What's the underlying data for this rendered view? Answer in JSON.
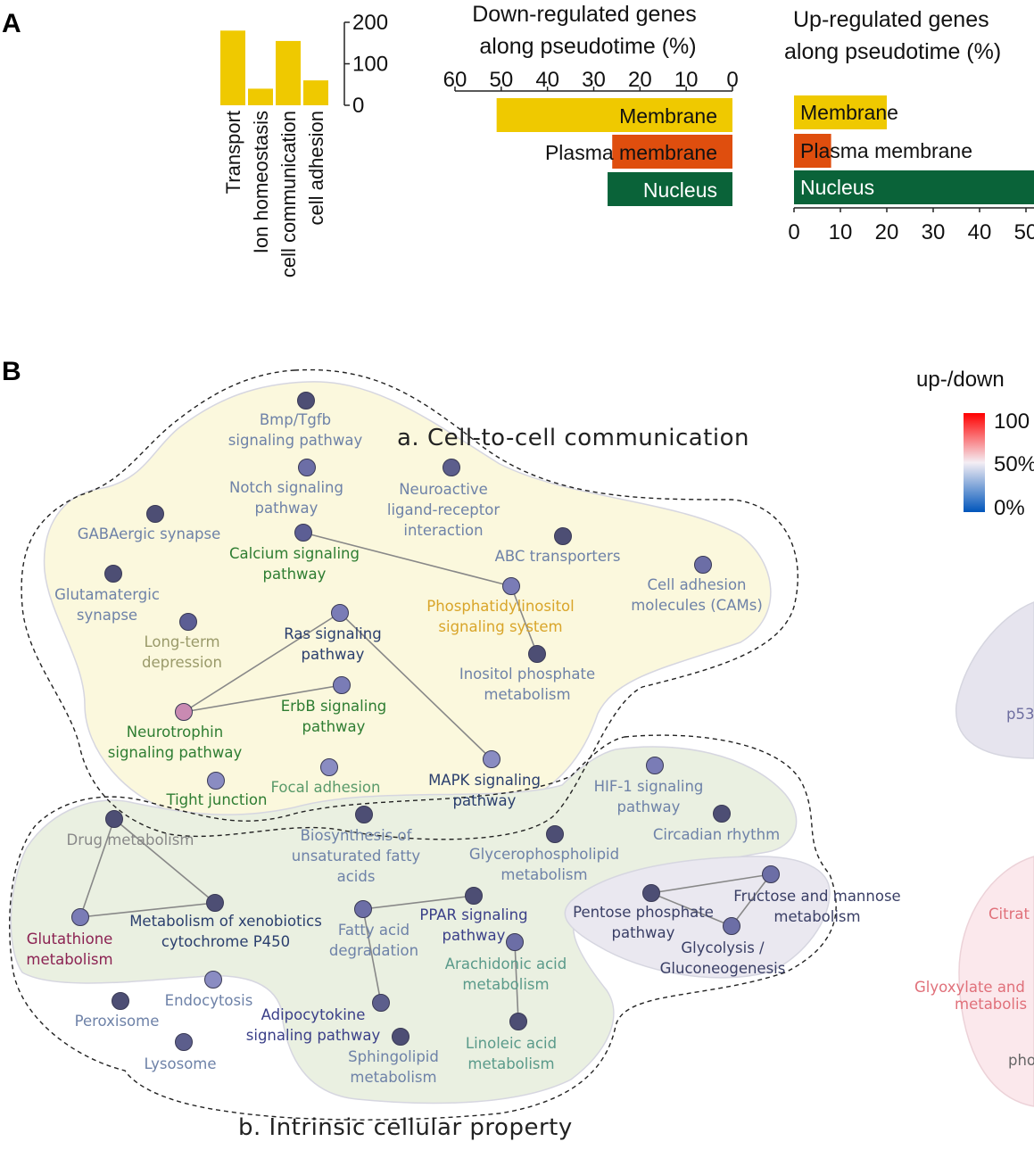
{
  "panels": {
    "a": "A",
    "b": "B"
  },
  "chart_data": [
    {
      "type": "bar",
      "orientation": "vertical",
      "categories": [
        "Transport",
        "Ion homeostasis",
        "cell communication",
        "cell adhesion"
      ],
      "values": [
        180,
        40,
        155,
        60
      ],
      "ylim": [
        0,
        200
      ],
      "yticks": [
        "200",
        "100",
        "0"
      ],
      "color": "#EFC900"
    },
    {
      "type": "bar",
      "orientation": "horizontal",
      "title": "Down-regulated genes along pseudotime (%)",
      "title_lines": [
        "Down-regulated genes",
        "along pseudotime (%)"
      ],
      "categories": [
        "Membrane",
        "Plasma membrane",
        "Nucleus"
      ],
      "values": [
        51,
        26,
        27
      ],
      "colors": [
        "#EFC900",
        "#DF4E0E",
        "#0A6339"
      ],
      "label_colors": [
        "#111111",
        "#111111",
        "#ffffff"
      ],
      "xlim": [
        60,
        0
      ],
      "xticks": [
        "60",
        "50",
        "40",
        "30",
        "20",
        "10",
        "0"
      ]
    },
    {
      "type": "bar",
      "orientation": "horizontal",
      "title": "Up-regulated genes along pseudotime (%)",
      "title_lines": [
        "Up-regulated genes",
        "along pseudotime (%)"
      ],
      "categories": [
        "Membrane",
        "Plasma membrane",
        "Nucleus"
      ],
      "values": [
        20,
        8,
        56
      ],
      "colors": [
        "#EFC900",
        "#DF4E0E",
        "#0A6339"
      ],
      "label_colors": [
        "#111111",
        "#111111",
        "#ffffff"
      ],
      "xlim": [
        0,
        60
      ],
      "xticks": [
        "0",
        "10",
        "20",
        "30",
        "40",
        "50"
      ]
    }
  ],
  "network": {
    "clusters": [
      {
        "id": "a",
        "label": "a. Cell-to-cell communication"
      },
      {
        "id": "b",
        "label": "b. Intrinsic cellular property"
      }
    ],
    "nodes": [
      {
        "id": "bmp",
        "label": [
          "Bmp/Tgfb",
          "signaling pathway"
        ],
        "label_color": "#6e82a8",
        "node_color": "#4d4e74"
      },
      {
        "id": "notch",
        "label": [
          "Notch signaling",
          "pathway"
        ],
        "label_color": "#6e82a8",
        "node_color": "#6c6ea6"
      },
      {
        "id": "neuroactive",
        "label": [
          "Neuroactive",
          "ligand-receptor",
          "interaction"
        ],
        "label_color": "#6e82a8",
        "node_color": "#5c5e8c"
      },
      {
        "id": "gaba",
        "label": [
          "GABAergic synapse"
        ],
        "label_color": "#6e82a8",
        "node_color": "#4d4e74"
      },
      {
        "id": "calcium",
        "label": [
          "Calcium signaling",
          "pathway"
        ],
        "label_color": "#2e7d32",
        "node_color": "#5c5e94"
      },
      {
        "id": "abc",
        "label": [
          "ABC transporters"
        ],
        "label_color": "#6e82a8",
        "node_color": "#4d4e74"
      },
      {
        "id": "cams",
        "label": [
          "Cell adhesion",
          "molecules (CAMs)"
        ],
        "label_color": "#6e82a8",
        "node_color": "#6c6ea6"
      },
      {
        "id": "glutamatergic",
        "label": [
          "Glutamatergic",
          "synapse"
        ],
        "label_color": "#6e82a8",
        "node_color": "#4d4e74"
      },
      {
        "id": "phosphatidyl",
        "label": [
          "Phosphatidylinositol",
          "signaling system"
        ],
        "label_color": "#d9a52a",
        "node_color": "#7a7cb6"
      },
      {
        "id": "ltd",
        "label": [
          "Long-term",
          "depression"
        ],
        "label_color": "#9a9a6a",
        "node_color": "#5c5e94"
      },
      {
        "id": "ras",
        "label": [
          "Ras signaling",
          "pathway"
        ],
        "label_color": "#2b3f6e",
        "node_color": "#7a7cb6"
      },
      {
        "id": "inositol",
        "label": [
          "Inositol phosphate",
          "metabolism"
        ],
        "label_color": "#6e82a8",
        "node_color": "#4d4e74"
      },
      {
        "id": "erbb",
        "label": [
          "ErbB signaling",
          "pathway"
        ],
        "label_color": "#2e7d32",
        "node_color": "#7a7cb6"
      },
      {
        "id": "neurotrophin",
        "label": [
          "Neurotrophin",
          "signaling pathway"
        ],
        "label_color": "#2e7d32",
        "node_color": "#c98ab2"
      },
      {
        "id": "mapk",
        "label": [
          "MAPK signaling",
          "pathway"
        ],
        "label_color": "#2b3f6e",
        "node_color": "#8a8cc2"
      },
      {
        "id": "tight",
        "label": [
          "Tight junction"
        ],
        "label_color": "#2e7d32",
        "node_color": "#8a8cc2"
      },
      {
        "id": "focal",
        "label": [
          "Focal adhesion"
        ],
        "label_color": "#5a9a6a",
        "node_color": "#8a8cc2"
      },
      {
        "id": "hif1",
        "label": [
          "HIF-1 signaling",
          "pathway"
        ],
        "label_color": "#6e82a8",
        "node_color": "#7a7cb6"
      },
      {
        "id": "circadian",
        "label": [
          "Circadian rhythm"
        ],
        "label_color": "#6e82a8",
        "node_color": "#4d4e74"
      },
      {
        "id": "drug",
        "label": [
          "Drug metabolism"
        ],
        "label_color": "#888888",
        "node_color": "#4d4e74"
      },
      {
        "id": "biosynth",
        "label": [
          "Biosynthesis of",
          "unsaturated fatty",
          "acids"
        ],
        "label_color": "#6e82a8",
        "node_color": "#4d4e74"
      },
      {
        "id": "glycerophospho",
        "label": [
          "Glycerophospholipid",
          "metabolism"
        ],
        "label_color": "#6e82a8",
        "node_color": "#4d4e74"
      },
      {
        "id": "fructose",
        "label": [
          "Fructose and mannose",
          "metabolism"
        ],
        "label_color": "#3a3f66",
        "node_color": "#6c6ea6"
      },
      {
        "id": "pentose",
        "label": [
          "Pentose phosphate",
          "pathway"
        ],
        "label_color": "#3a3f66",
        "node_color": "#4d4e74"
      },
      {
        "id": "glycolysis",
        "label": [
          "Glycolysis /",
          "Gluconeogenesis"
        ],
        "label_color": "#3a3f66",
        "node_color": "#6c6ea6"
      },
      {
        "id": "ppar",
        "label": [
          "PPAR signaling",
          "pathway"
        ],
        "label_color": "#3a3f88",
        "node_color": "#4d4e74"
      },
      {
        "id": "xenobiotics",
        "label": [
          "Metabolism of xenobiotics",
          "cytochrome P450"
        ],
        "label_color": "#2b3f6e",
        "node_color": "#4d4e74"
      },
      {
        "id": "fattyacid",
        "label": [
          "Fatty acid",
          "degradation"
        ],
        "label_color": "#6e82a8",
        "node_color": "#6c6ea6"
      },
      {
        "id": "glutathione",
        "label": [
          "Glutathione",
          "metabolism"
        ],
        "label_color": "#8b2252",
        "node_color": "#7a7cb6"
      },
      {
        "id": "arachidonic",
        "label": [
          "Arachidonic acid",
          "metabolism"
        ],
        "label_color": "#5a9a8a",
        "node_color": "#6c6ea6"
      },
      {
        "id": "endocytosis",
        "label": [
          "Endocytosis"
        ],
        "label_color": "#6e82a8",
        "node_color": "#8a8cc2"
      },
      {
        "id": "peroxisome",
        "label": [
          "Peroxisome"
        ],
        "label_color": "#6e82a8",
        "node_color": "#4d4e74"
      },
      {
        "id": "adipocytokine",
        "label": [
          "Adipocytokine",
          "signaling pathway"
        ],
        "label_color": "#3a3f88",
        "node_color": "#5c5e8c"
      },
      {
        "id": "linoleic",
        "label": [
          "Linoleic acid",
          "metabolism"
        ],
        "label_color": "#5a9a8a",
        "node_color": "#4d4e74"
      },
      {
        "id": "sphingolipid",
        "label": [
          "Sphingolipid",
          "metabolism"
        ],
        "label_color": "#6e82a8",
        "node_color": "#4d4e74"
      },
      {
        "id": "lysosome",
        "label": [
          "Lysosome"
        ],
        "label_color": "#6e82a8",
        "node_color": "#5c5e8c"
      }
    ],
    "edges": [
      [
        "calcium",
        "phosphatidyl"
      ],
      [
        "phosphatidyl",
        "inositol"
      ],
      [
        "ras",
        "neurotrophin"
      ],
      [
        "neurotrophin",
        "erbb"
      ],
      [
        "ras",
        "mapk"
      ],
      [
        "drug",
        "glutathione"
      ],
      [
        "drug",
        "xenobiotics"
      ],
      [
        "glutathione",
        "xenobiotics"
      ],
      [
        "fattyacid",
        "ppar"
      ],
      [
        "fattyacid",
        "adipocytokine"
      ],
      [
        "arachidonic",
        "linoleic"
      ],
      [
        "pentose",
        "fructose"
      ],
      [
        "pentose",
        "glycolysis"
      ],
      [
        "fructose",
        "glycolysis"
      ]
    ],
    "partial_labels": [
      {
        "id": "p53",
        "text": "p53",
        "color": "#6e6ea0"
      },
      {
        "id": "citrate",
        "text": "Citrat",
        "color": "#e0707a"
      },
      {
        "id": "glyoxylate",
        "text": "Glyoxylate and",
        "color": "#e0707a"
      },
      {
        "id": "glyoxylate2",
        "text": "metabolis",
        "color": "#e0707a"
      },
      {
        "id": "pho",
        "text": "pho",
        "color": "#666666"
      }
    ]
  },
  "legend": {
    "title": "up-/down",
    "ticks": [
      "100",
      "50%",
      "0%"
    ],
    "colors": {
      "high": "#ff0000",
      "mid": "#f4eef4",
      "low": "#0055bb"
    }
  }
}
